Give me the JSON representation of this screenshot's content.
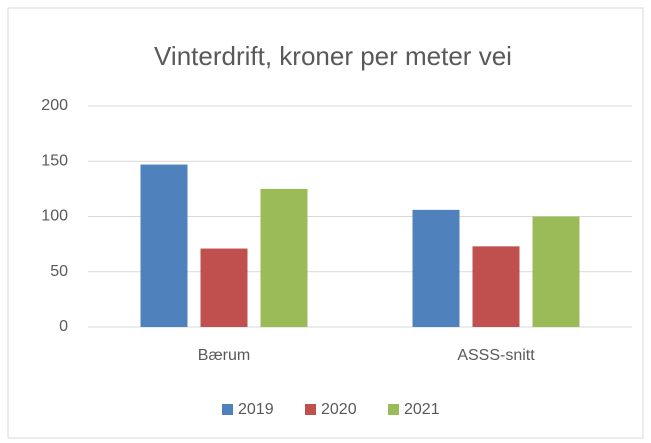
{
  "chart_data": {
    "type": "bar",
    "title": "Vinterdrift, kroner per meter vei",
    "categories": [
      "Bærum",
      "ASSS-snitt"
    ],
    "series": [
      {
        "name": "2019",
        "color": "#4f81bd",
        "values": [
          147,
          106
        ]
      },
      {
        "name": "2020",
        "color": "#c0504d",
        "values": [
          71,
          73
        ]
      },
      {
        "name": "2021",
        "color": "#9bbb59",
        "values": [
          125,
          100
        ]
      }
    ],
    "ylim": [
      0,
      200
    ],
    "yticks": [
      0,
      50,
      100,
      150,
      200
    ],
    "grid": true,
    "legend": "bottom"
  }
}
